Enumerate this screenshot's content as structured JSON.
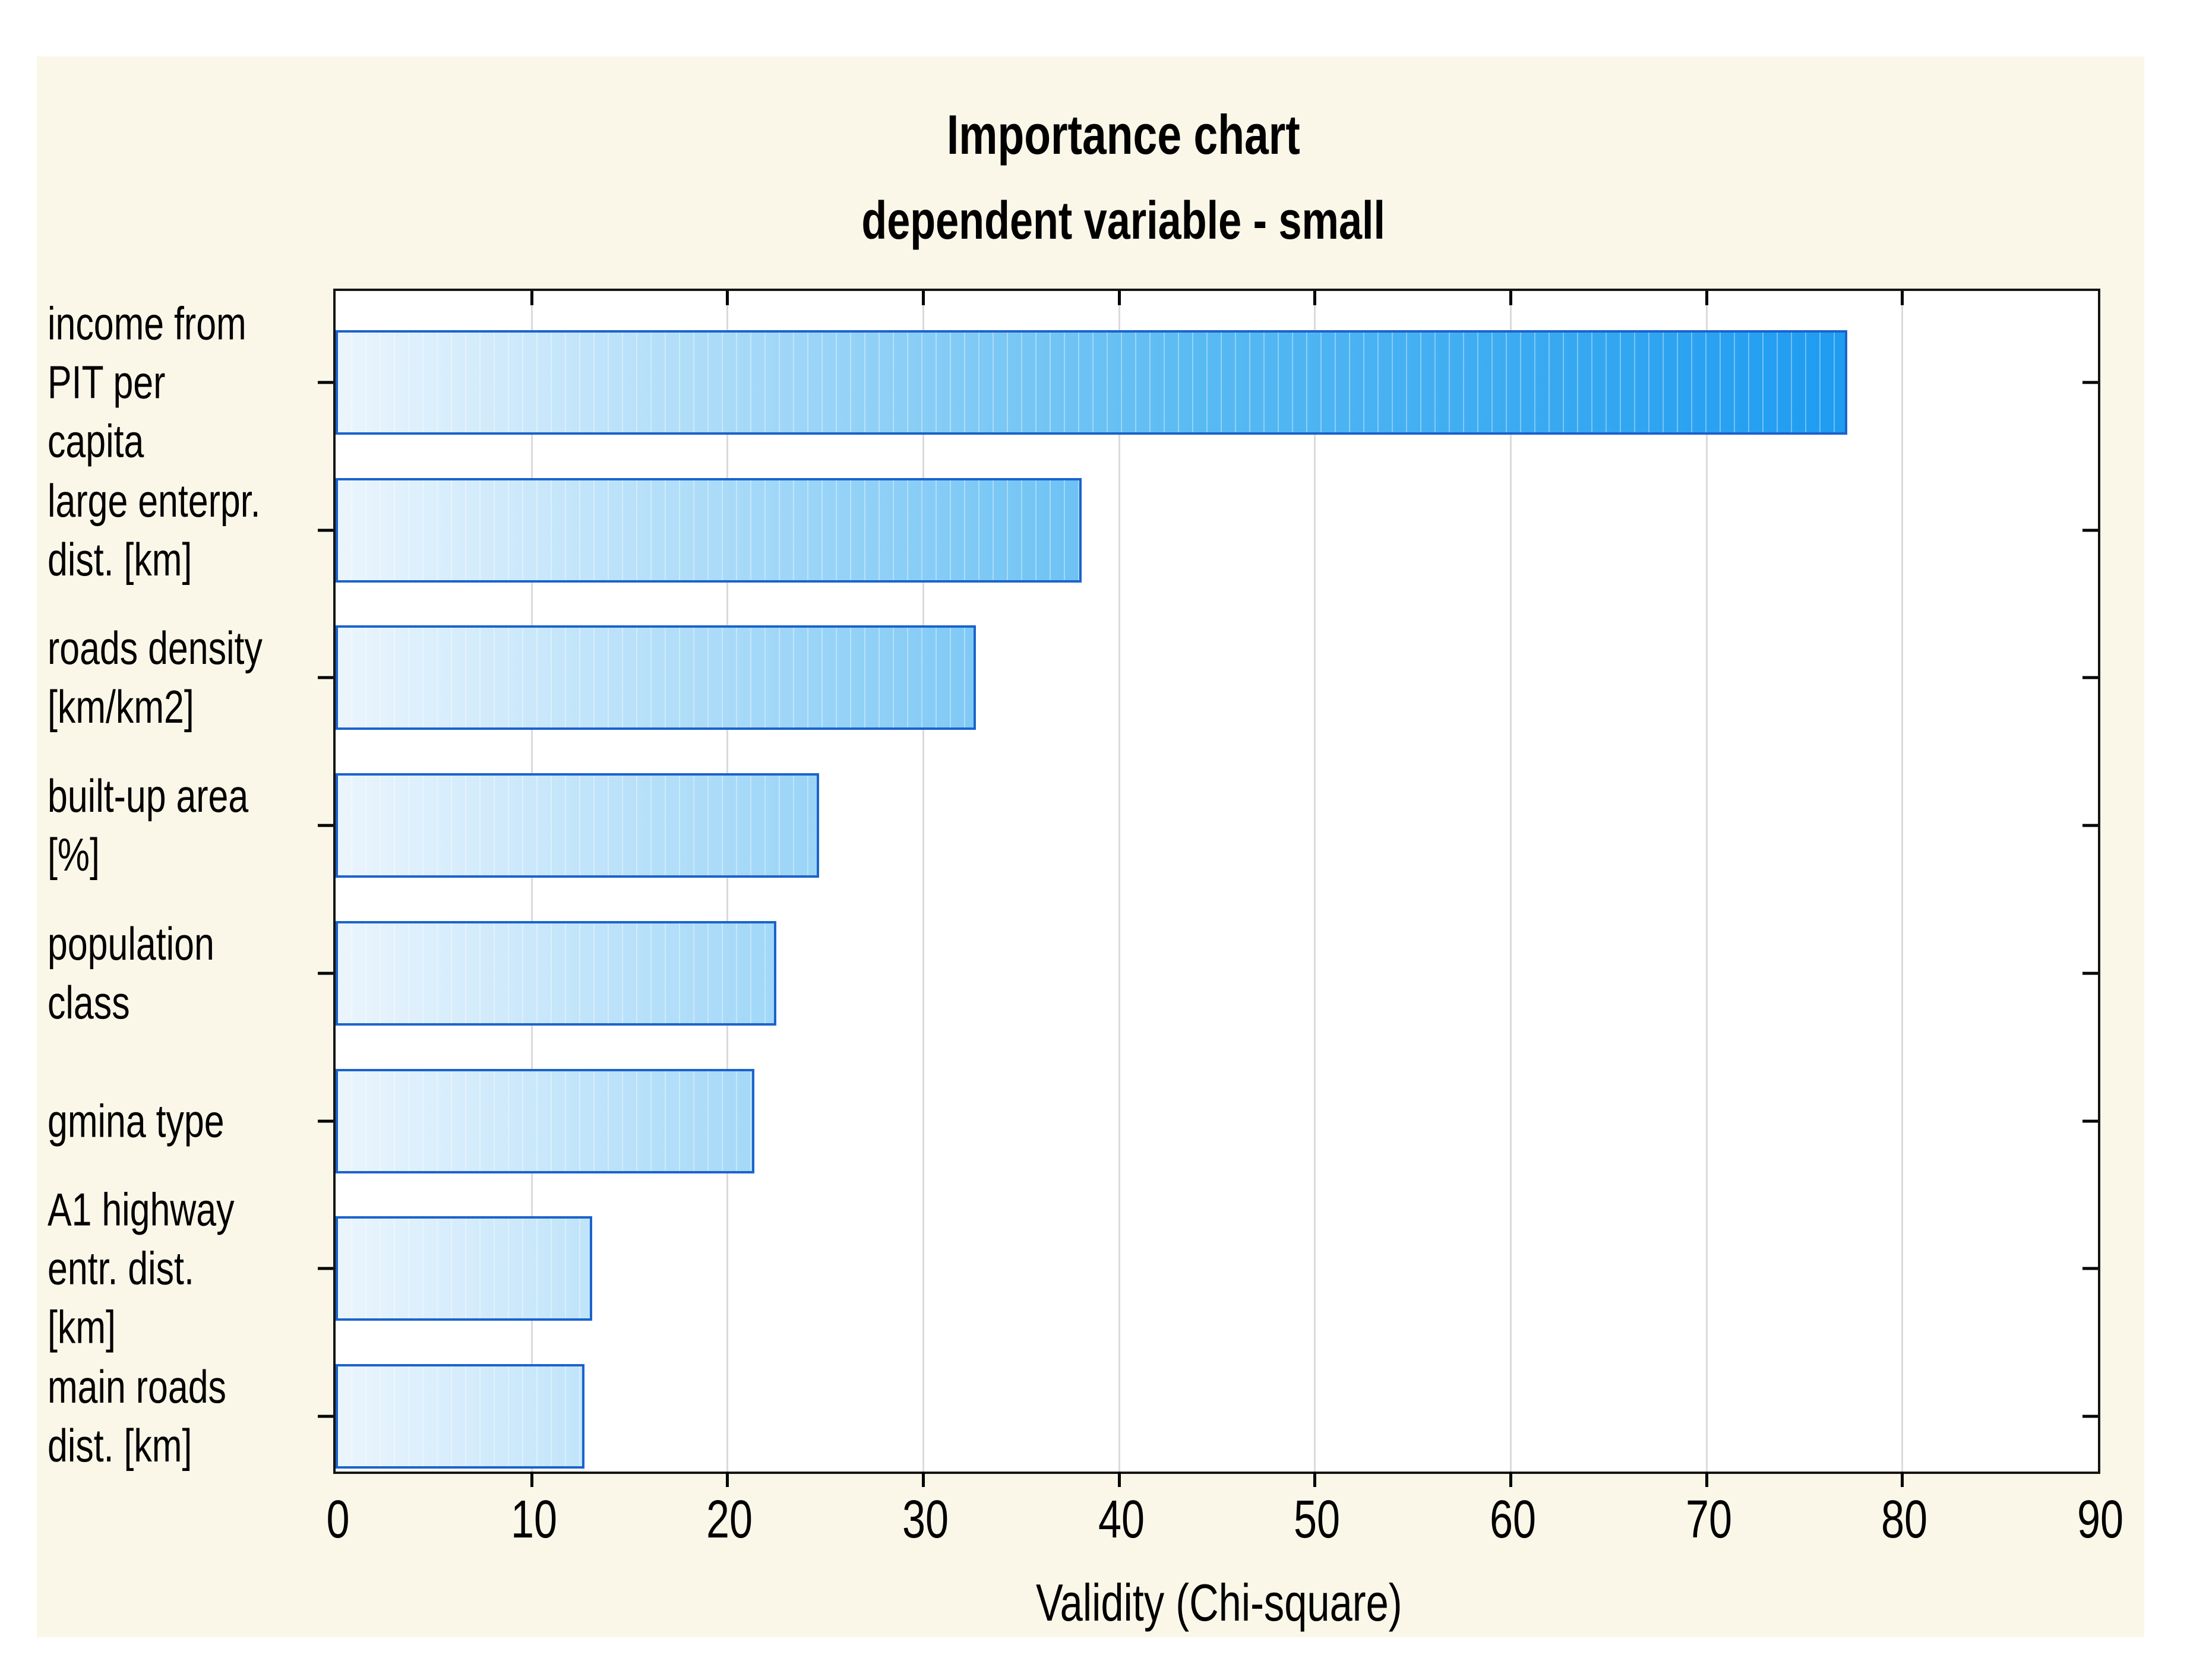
{
  "title": "Importance chart",
  "subtitle": "dependent variable - small",
  "chart_data": {
    "type": "bar",
    "orientation": "horizontal",
    "title": "Importance chart",
    "subtitle": "dependent variable - small",
    "xlabel": "Validity (Chi-square)",
    "ylabel": "",
    "xlim": [
      0,
      90
    ],
    "xticks": [
      0,
      10,
      20,
      30,
      40,
      50,
      60,
      70,
      80,
      90
    ],
    "grid": "vertical-light-gray",
    "legend": "none",
    "categories": [
      "income from\n PIT  per capita",
      "large enterpr.\ndist. [km]",
      "roads density\n[km/km2]",
      "built-up area\n [%]",
      "population class",
      "gmina type",
      "A1 highway\nentr. dist. [km]",
      "main roads\ndist. [km]"
    ],
    "values": [
      77.2,
      38.1,
      32.7,
      24.7,
      22.5,
      21.4,
      13.1,
      12.7
    ]
  },
  "colors": {
    "page_bg": "#FFFFFF",
    "panel_bg": "#FBF7E8",
    "plot_bg": "#FFFFFF",
    "grid": "#DBDBDB",
    "axis": "#151515",
    "text": "#000000",
    "bar_border": "#1B63CC",
    "bar_gradient_start": "#EBF5FD",
    "bar_gradient_mid": "#56B9F2",
    "bar_gradient_end": "#0890F0"
  }
}
